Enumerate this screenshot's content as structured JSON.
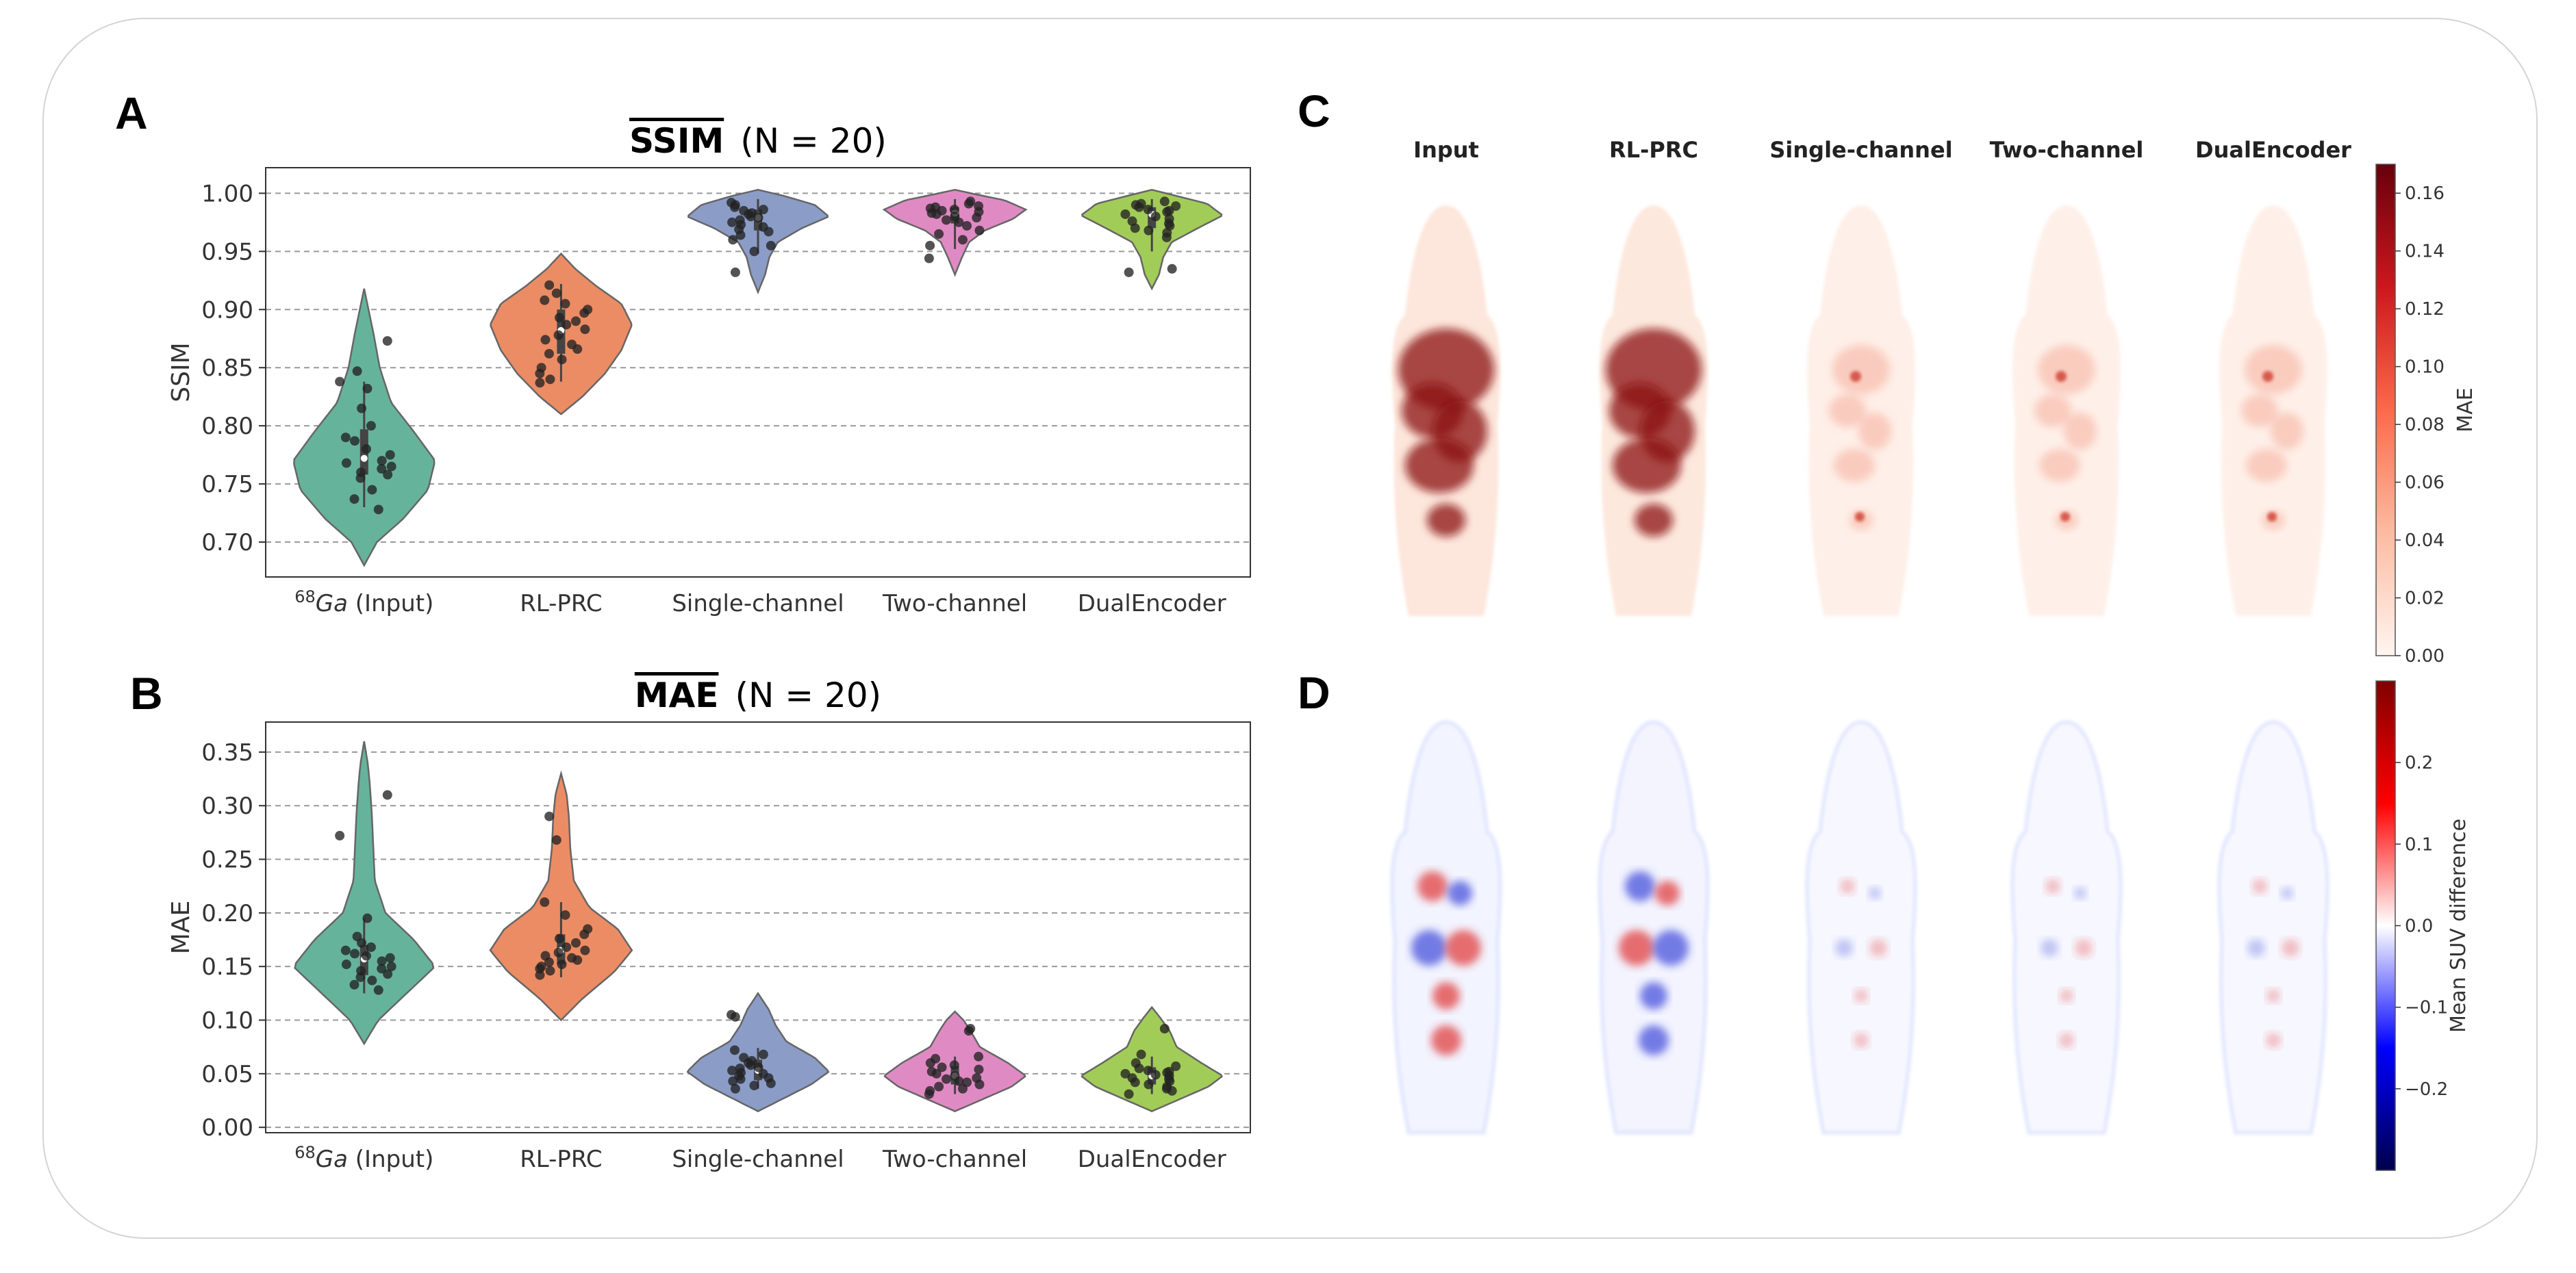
{
  "panels": {
    "a": "A",
    "b": "B",
    "c": "C",
    "d": "D"
  },
  "chart_data": [
    {
      "type": "violin",
      "panel": "A",
      "title": "SSIM",
      "title_suffix": "(N = 20)",
      "ylabel": "SSIM",
      "ylim": [
        0.67,
        1.022
      ],
      "yticks": [
        0.7,
        0.75,
        0.8,
        0.85,
        0.9,
        0.95,
        1.0
      ],
      "ytick_labels": [
        "0.70",
        "0.75",
        "0.80",
        "0.85",
        "0.90",
        "0.95",
        "1.00"
      ],
      "grid": "horizontal dashed",
      "categories": [
        "68Ga (Input)",
        "RL-PRC",
        "Single-channel",
        "Two-channel",
        "DualEncoder"
      ],
      "category_labels": [
        {
          "sup": "68",
          "main": "Ga",
          "rest": " (Input)"
        },
        {
          "sup": "",
          "main": "RL-PRC",
          "rest": ""
        },
        {
          "sup": "",
          "main": "Single-channel",
          "rest": ""
        },
        {
          "sup": "",
          "main": "Two-channel",
          "rest": ""
        },
        {
          "sup": "",
          "main": "DualEncoder",
          "rest": ""
        }
      ],
      "colors": [
        "#66b39b",
        "#ec8c64",
        "#8b9cc7",
        "#e08ac4",
        "#a2cc58"
      ],
      "series": [
        {
          "name": "68Ga (Input)",
          "values": [
            0.873,
            0.838,
            0.832,
            0.847,
            0.815,
            0.8,
            0.79,
            0.787,
            0.78,
            0.775,
            0.77,
            0.768,
            0.765,
            0.763,
            0.76,
            0.758,
            0.755,
            0.745,
            0.737,
            0.728
          ],
          "density": {
            "min": 0.68,
            "max": 0.918,
            "q1": 0.758,
            "median": 0.772,
            "q3": 0.797,
            "whisker": [
              0.73,
              0.838
            ],
            "profile": [
              [
                0.68,
                0.0
              ],
              [
                0.7,
                0.18
              ],
              [
                0.72,
                0.55
              ],
              [
                0.745,
                0.9
              ],
              [
                0.77,
                1.0
              ],
              [
                0.795,
                0.7
              ],
              [
                0.82,
                0.38
              ],
              [
                0.85,
                0.22
              ],
              [
                0.88,
                0.13
              ],
              [
                0.918,
                0.0
              ]
            ]
          }
        },
        {
          "name": "RL-PRC",
          "values": [
            0.921,
            0.914,
            0.908,
            0.905,
            0.9,
            0.897,
            0.893,
            0.89,
            0.887,
            0.883,
            0.878,
            0.874,
            0.87,
            0.866,
            0.862,
            0.857,
            0.85,
            0.845,
            0.84,
            0.837
          ],
          "density": {
            "min": 0.81,
            "max": 0.948,
            "q1": 0.862,
            "median": 0.882,
            "q3": 0.9,
            "whisker": [
              0.838,
              0.922
            ],
            "profile": [
              [
                0.81,
                0.0
              ],
              [
                0.825,
                0.3
              ],
              [
                0.845,
                0.62
              ],
              [
                0.865,
                0.85
              ],
              [
                0.887,
                1.0
              ],
              [
                0.905,
                0.85
              ],
              [
                0.92,
                0.5
              ],
              [
                0.935,
                0.2
              ],
              [
                0.948,
                0.0
              ]
            ]
          }
        },
        {
          "name": "Single-channel",
          "values": [
            0.992,
            0.99,
            0.988,
            0.986,
            0.985,
            0.983,
            0.982,
            0.98,
            0.979,
            0.977,
            0.975,
            0.973,
            0.971,
            0.969,
            0.967,
            0.964,
            0.96,
            0.955,
            0.95,
            0.932
          ],
          "density": {
            "min": 0.915,
            "max": 1.003,
            "q1": 0.968,
            "median": 0.979,
            "q3": 0.986,
            "whisker": [
              0.948,
              0.995
            ],
            "profile": [
              [
                0.915,
                0.0
              ],
              [
                0.93,
                0.1
              ],
              [
                0.945,
                0.16
              ],
              [
                0.958,
                0.28
              ],
              [
                0.97,
                0.62
              ],
              [
                0.98,
                1.0
              ],
              [
                0.99,
                0.8
              ],
              [
                0.998,
                0.35
              ],
              [
                1.003,
                0.0
              ]
            ]
          }
        },
        {
          "name": "Two-channel",
          "values": [
            0.993,
            0.991,
            0.989,
            0.988,
            0.987,
            0.986,
            0.985,
            0.984,
            0.983,
            0.982,
            0.98,
            0.979,
            0.977,
            0.975,
            0.972,
            0.968,
            0.965,
            0.96,
            0.955,
            0.944
          ],
          "density": {
            "min": 0.93,
            "max": 1.003,
            "q1": 0.974,
            "median": 0.983,
            "q3": 0.988,
            "whisker": [
              0.952,
              0.995
            ],
            "profile": [
              [
                0.93,
                0.0
              ],
              [
                0.945,
                0.1
              ],
              [
                0.958,
                0.2
              ],
              [
                0.968,
                0.42
              ],
              [
                0.978,
                0.82
              ],
              [
                0.986,
                1.0
              ],
              [
                0.994,
                0.7
              ],
              [
                0.999,
                0.3
              ],
              [
                1.003,
                0.0
              ]
            ]
          }
        },
        {
          "name": "DualEncoder",
          "values": [
            0.993,
            0.991,
            0.99,
            0.989,
            0.988,
            0.986,
            0.985,
            0.984,
            0.982,
            0.98,
            0.978,
            0.976,
            0.974,
            0.972,
            0.97,
            0.968,
            0.966,
            0.962,
            0.935,
            0.932
          ],
          "density": {
            "min": 0.918,
            "max": 1.003,
            "q1": 0.97,
            "median": 0.982,
            "q3": 0.988,
            "whisker": [
              0.95,
              0.995
            ],
            "profile": [
              [
                0.918,
                0.0
              ],
              [
                0.93,
                0.1
              ],
              [
                0.945,
                0.16
              ],
              [
                0.958,
                0.28
              ],
              [
                0.97,
                0.65
              ],
              [
                0.981,
                1.0
              ],
              [
                0.991,
                0.78
              ],
              [
                0.998,
                0.33
              ],
              [
                1.003,
                0.0
              ]
            ]
          }
        }
      ]
    },
    {
      "type": "violin",
      "panel": "B",
      "title": "MAE",
      "title_suffix": "(N = 20)",
      "ylabel": "MAE",
      "ylim": [
        -0.005,
        0.378
      ],
      "yticks": [
        0.0,
        0.05,
        0.1,
        0.15,
        0.2,
        0.25,
        0.3,
        0.35
      ],
      "ytick_labels": [
        "0.00",
        "0.05",
        "0.10",
        "0.15",
        "0.20",
        "0.25",
        "0.30",
        "0.35"
      ],
      "grid": "horizontal dashed",
      "categories": [
        "68Ga (Input)",
        "RL-PRC",
        "Single-channel",
        "Two-channel",
        "DualEncoder"
      ],
      "category_labels": [
        {
          "sup": "68",
          "main": "Ga",
          "rest": " (Input)"
        },
        {
          "sup": "",
          "main": "RL-PRC",
          "rest": ""
        },
        {
          "sup": "",
          "main": "Single-channel",
          "rest": ""
        },
        {
          "sup": "",
          "main": "Two-channel",
          "rest": ""
        },
        {
          "sup": "",
          "main": "DualEncoder",
          "rest": ""
        }
      ],
      "colors": [
        "#66b39b",
        "#ec8c64",
        "#8b9cc7",
        "#e08ac4",
        "#a2cc58"
      ],
      "series": [
        {
          "name": "68Ga (Input)",
          "values": [
            0.31,
            0.272,
            0.195,
            0.178,
            0.172,
            0.168,
            0.165,
            0.162,
            0.16,
            0.158,
            0.155,
            0.152,
            0.15,
            0.148,
            0.146,
            0.143,
            0.14,
            0.137,
            0.133,
            0.128
          ],
          "density": {
            "min": 0.078,
            "max": 0.36,
            "q1": 0.142,
            "median": 0.157,
            "q3": 0.17,
            "whisker": [
              0.125,
              0.195
            ],
            "profile": [
              [
                0.078,
                0.0
              ],
              [
                0.1,
                0.2
              ],
              [
                0.125,
                0.6
              ],
              [
                0.15,
                1.0
              ],
              [
                0.175,
                0.7
              ],
              [
                0.2,
                0.3
              ],
              [
                0.23,
                0.15
              ],
              [
                0.26,
                0.13
              ],
              [
                0.29,
                0.11
              ],
              [
                0.32,
                0.08
              ],
              [
                0.34,
                0.05
              ],
              [
                0.36,
                0.0
              ]
            ]
          }
        },
        {
          "name": "RL-PRC",
          "values": [
            0.29,
            0.268,
            0.21,
            0.198,
            0.185,
            0.18,
            0.176,
            0.172,
            0.168,
            0.165,
            0.163,
            0.16,
            0.158,
            0.156,
            0.154,
            0.152,
            0.15,
            0.148,
            0.146,
            0.142
          ],
          "density": {
            "min": 0.1,
            "max": 0.33,
            "q1": 0.152,
            "median": 0.165,
            "q3": 0.18,
            "whisker": [
              0.14,
              0.21
            ],
            "profile": [
              [
                0.1,
                0.0
              ],
              [
                0.12,
                0.3
              ],
              [
                0.145,
                0.75
              ],
              [
                0.165,
                1.0
              ],
              [
                0.185,
                0.8
              ],
              [
                0.205,
                0.4
              ],
              [
                0.23,
                0.18
              ],
              [
                0.26,
                0.13
              ],
              [
                0.29,
                0.11
              ],
              [
                0.31,
                0.08
              ],
              [
                0.33,
                0.0
              ]
            ]
          }
        },
        {
          "name": "Single-channel",
          "values": [
            0.105,
            0.103,
            0.072,
            0.068,
            0.065,
            0.062,
            0.06,
            0.058,
            0.056,
            0.055,
            0.053,
            0.051,
            0.05,
            0.048,
            0.046,
            0.045,
            0.043,
            0.041,
            0.039,
            0.036
          ],
          "density": {
            "min": 0.015,
            "max": 0.125,
            "q1": 0.044,
            "median": 0.053,
            "q3": 0.063,
            "whisker": [
              0.036,
              0.074
            ],
            "profile": [
              [
                0.015,
                0.0
              ],
              [
                0.025,
                0.3
              ],
              [
                0.04,
                0.75
              ],
              [
                0.052,
                1.0
              ],
              [
                0.065,
                0.8
              ],
              [
                0.08,
                0.4
              ],
              [
                0.095,
                0.25
              ],
              [
                0.11,
                0.15
              ],
              [
                0.125,
                0.0
              ]
            ]
          }
        },
        {
          "name": "Two-channel",
          "values": [
            0.092,
            0.09,
            0.066,
            0.064,
            0.06,
            0.058,
            0.056,
            0.054,
            0.052,
            0.05,
            0.048,
            0.046,
            0.045,
            0.043,
            0.042,
            0.04,
            0.038,
            0.036,
            0.034,
            0.031
          ],
          "density": {
            "min": 0.015,
            "max": 0.108,
            "q1": 0.04,
            "median": 0.048,
            "q3": 0.057,
            "whisker": [
              0.031,
              0.066
            ],
            "profile": [
              [
                0.015,
                0.0
              ],
              [
                0.025,
                0.35
              ],
              [
                0.038,
                0.8
              ],
              [
                0.048,
                1.0
              ],
              [
                0.06,
                0.75
              ],
              [
                0.075,
                0.35
              ],
              [
                0.09,
                0.22
              ],
              [
                0.1,
                0.12
              ],
              [
                0.108,
                0.0
              ]
            ]
          }
        },
        {
          "name": "DualEncoder",
          "values": [
            0.092,
            0.068,
            0.06,
            0.057,
            0.055,
            0.053,
            0.052,
            0.051,
            0.05,
            0.049,
            0.048,
            0.046,
            0.045,
            0.043,
            0.042,
            0.04,
            0.038,
            0.036,
            0.034,
            0.031
          ],
          "density": {
            "min": 0.015,
            "max": 0.112,
            "q1": 0.04,
            "median": 0.048,
            "q3": 0.056,
            "whisker": [
              0.031,
              0.066
            ],
            "profile": [
              [
                0.015,
                0.0
              ],
              [
                0.025,
                0.35
              ],
              [
                0.038,
                0.8
              ],
              [
                0.048,
                1.0
              ],
              [
                0.06,
                0.7
              ],
              [
                0.075,
                0.35
              ],
              [
                0.09,
                0.25
              ],
              [
                0.102,
                0.12
              ],
              [
                0.112,
                0.0
              ]
            ]
          }
        }
      ]
    },
    {
      "type": "heatmap",
      "panel": "C",
      "description_kind": "mean absolute error maps",
      "columns": [
        "Input",
        "RL-PRC",
        "Single-channel",
        "Two-channel",
        "DualEncoder"
      ],
      "intensity": [
        1.0,
        0.9,
        0.35,
        0.33,
        0.32
      ],
      "colorbar": {
        "label": "MAE",
        "range": [
          0.0,
          0.17
        ],
        "ticks": [
          0.0,
          0.02,
          0.04,
          0.06,
          0.08,
          0.1,
          0.12,
          0.14,
          0.16
        ],
        "tick_labels": [
          "0.00",
          "0.02",
          "0.04",
          "0.06",
          "0.08",
          "0.10",
          "0.12",
          "0.14",
          "0.16"
        ],
        "colormap": "Reds"
      }
    },
    {
      "type": "heatmap",
      "panel": "D",
      "description_kind": "mean SUV difference maps",
      "columns": [
        "Input",
        "RL-PRC",
        "Single-channel",
        "Two-channel",
        "DualEncoder"
      ],
      "intensity": [
        1.0,
        0.95,
        0.3,
        0.3,
        0.3
      ],
      "colorbar": {
        "label": "Mean SUV difference",
        "range": [
          -0.3,
          0.3
        ],
        "ticks": [
          0.2,
          0.1,
          0.0,
          -0.1,
          -0.2
        ],
        "tick_labels": [
          "0.2",
          "0.1",
          "0.0",
          "−0.1",
          "−0.2"
        ],
        "colormap": "seismic"
      }
    }
  ]
}
